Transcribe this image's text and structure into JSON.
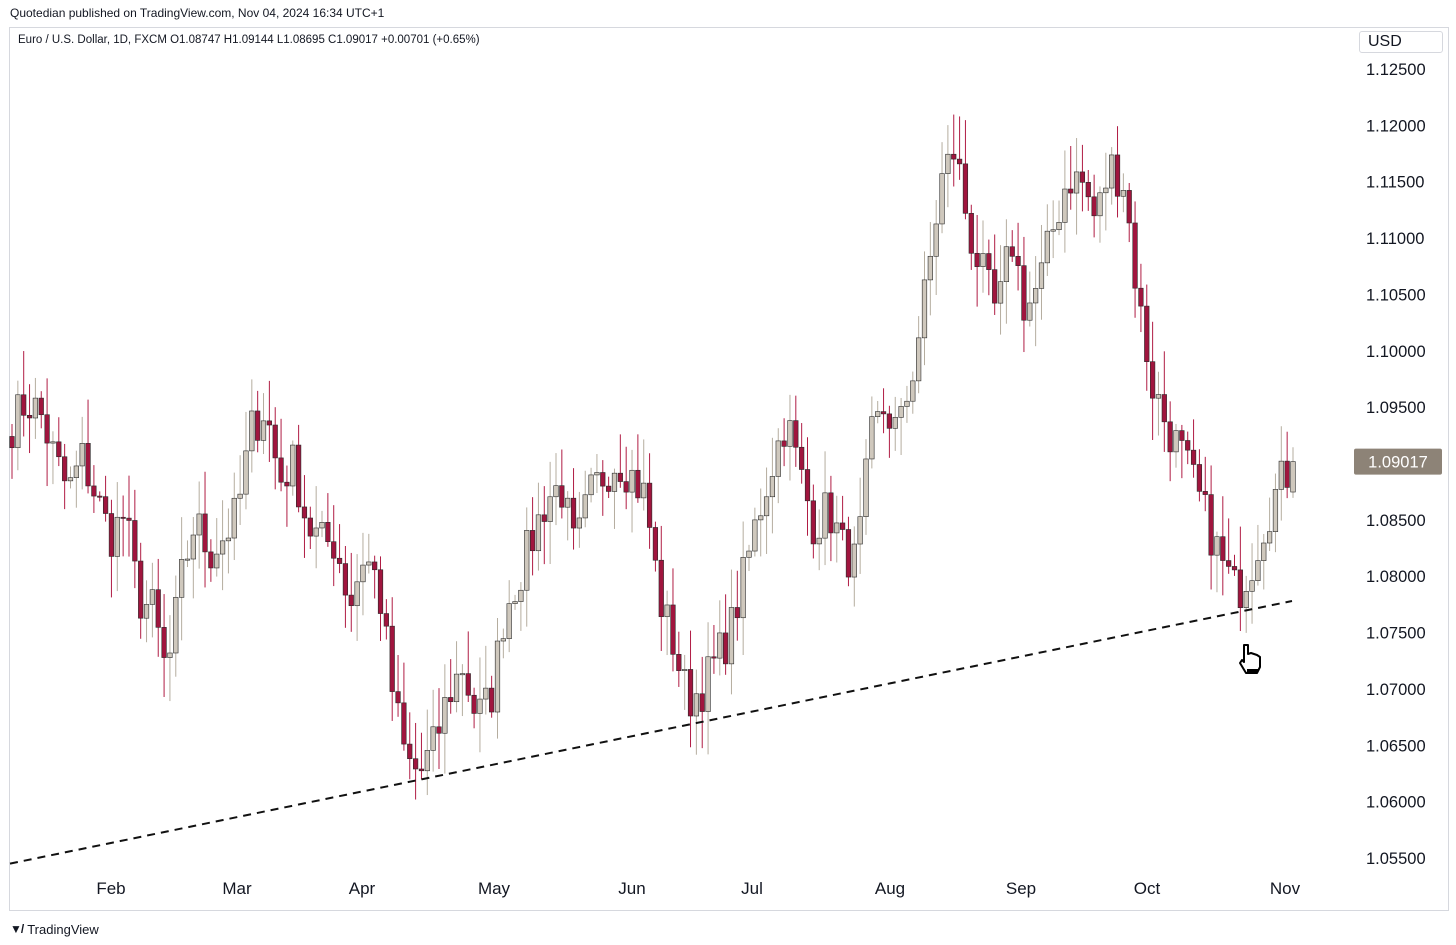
{
  "publisher_line": "Quotedian published on TradingView.com, Nov 04, 2024 16:34 UTC+1",
  "legend_text": "Euro / U.S. Dollar, 1D, FXCM  O1.08747  H1.09144  L1.08695  C1.09017  +0.00701 (+0.65%)",
  "currency_label": "USD",
  "footer_brand": "TradingView",
  "icons": {
    "footer_logo": "tradingview-logo-icon",
    "cursor": "hand-pointer-icon"
  },
  "colors": {
    "up_body": "#cfc8bd",
    "down_body": "#a0153e",
    "wick_up": "#b5ad9f",
    "wick_down": "#b01c44",
    "last_label_bg": "#8d8377"
  },
  "chart_data": {
    "type": "candlestick",
    "title": "Euro / U.S. Dollar, 1D, FXCM",
    "ylabel": "USD",
    "ylim": [
      1.0545,
      1.127
    ],
    "y_ticks": [
      "1.12500",
      "1.12000",
      "1.11500",
      "1.11000",
      "1.10500",
      "1.10000",
      "1.09500",
      "1.09000",
      "1.08500",
      "1.08000",
      "1.07500",
      "1.07000",
      "1.06500",
      "1.06000",
      "1.05500"
    ],
    "x_months": [
      "Feb",
      "Mar",
      "Apr",
      "May",
      "Jun",
      "Jul",
      "Aug",
      "Sep",
      "Oct",
      "Nov"
    ],
    "last_price_label": "1.09017",
    "last_ohlc": {
      "open": 1.08747,
      "high": 1.09144,
      "low": 1.08695,
      "close": 1.09017,
      "change": 0.00701,
      "change_pct": 0.65
    },
    "trendline": [
      {
        "date": "2024-01-01",
        "price": 1.0545
      },
      {
        "date": "2024-11-04",
        "price": 1.0778
      }
    ],
    "close_path": [
      1.0935,
      1.0955,
      1.0945,
      1.0905,
      1.0875,
      1.0905,
      1.087,
      1.0835,
      1.0855,
      1.078,
      1.077,
      1.071,
      1.0795,
      1.085,
      1.082,
      1.0835,
      1.0855,
      1.093,
      1.095,
      1.0885,
      1.09,
      1.0845,
      1.083,
      1.083,
      1.0775,
      1.082,
      1.0795,
      1.07,
      1.0635,
      1.0625,
      1.065,
      1.0695,
      1.072,
      1.0675,
      1.069,
      1.077,
      1.08,
      1.0835,
      1.087,
      1.088,
      1.082,
      1.087,
      1.089,
      1.0905,
      1.089,
      1.087,
      1.078,
      1.074,
      1.069,
      1.07,
      1.0725,
      1.075,
      1.08,
      1.0855,
      1.09,
      1.094,
      1.089,
      1.0845,
      1.086,
      1.0825,
      1.081,
      1.092,
      1.095,
      1.0925,
      1.0985,
      1.106,
      1.115,
      1.118,
      1.1105,
      1.1065,
      1.103,
      1.11,
      1.1035,
      1.106,
      1.111,
      1.1155,
      1.115,
      1.1115,
      1.1165,
      1.115,
      1.1045,
      1.097,
      1.0935,
      1.091,
      1.088,
      1.0845,
      1.081,
      1.0785,
      1.081,
      1.085,
      1.088,
      1.09
    ]
  }
}
